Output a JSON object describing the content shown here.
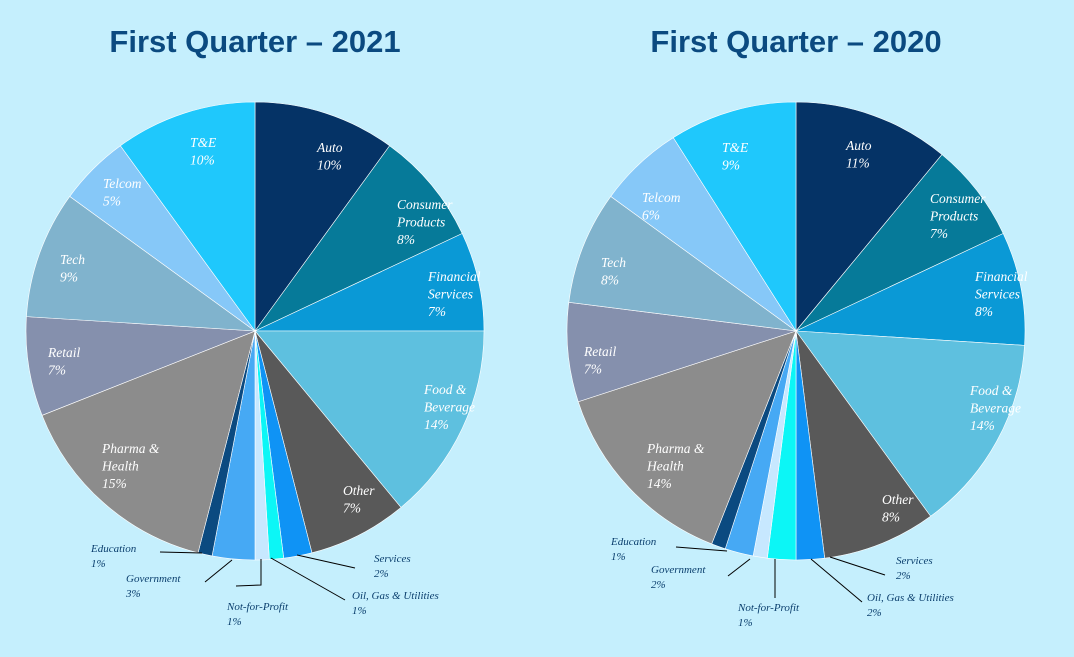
{
  "chart_data": [
    {
      "type": "pie",
      "title": "First Quarter – 2021",
      "slices": [
        {
          "label": "Auto",
          "percent_label": "10%",
          "value": 10,
          "color": "#053366"
        },
        {
          "label": "Consumer Products",
          "percent_label": "8%",
          "value": 8,
          "color": "#067a99"
        },
        {
          "label": "Financial Services",
          "percent_label": "7%",
          "value": 7,
          "color": "#0a99d6"
        },
        {
          "label": "Food & Beverage",
          "percent_label": "14%",
          "value": 14,
          "color": "#5ec0df"
        },
        {
          "label": "Other",
          "percent_label": "7%",
          "value": 7,
          "color": "#595959"
        },
        {
          "label": "Services",
          "percent_label": "2%",
          "value": 2,
          "color": "#0f93f5"
        },
        {
          "label": "Oil, Gas & Utilities",
          "percent_label": "1%",
          "value": 1,
          "color": "#0cf6f6"
        },
        {
          "label": "Not-for-Profit",
          "percent_label": "1%",
          "value": 1,
          "color": "#c7e8ff"
        },
        {
          "label": "Government",
          "percent_label": "3%",
          "value": 3,
          "color": "#46a9f4"
        },
        {
          "label": "Education",
          "percent_label": "1%",
          "value": 1,
          "color": "#0b4a80"
        },
        {
          "label": "Pharma & Health",
          "percent_label": "15%",
          "value": 15,
          "color": "#8c8c8c"
        },
        {
          "label": "Retail",
          "percent_label": "7%",
          "value": 7,
          "color": "#8590ad"
        },
        {
          "label": "Tech",
          "percent_label": "9%",
          "value": 9,
          "color": "#80b3cd"
        },
        {
          "label": "Telcom",
          "percent_label": "5%",
          "value": 5,
          "color": "#86c8f8"
        },
        {
          "label": "T&E",
          "percent_label": "10%",
          "value": 10,
          "color": "#1fc8fc"
        }
      ]
    },
    {
      "type": "pie",
      "title": "First Quarter – 2020",
      "slices": [
        {
          "label": "Auto",
          "percent_label": "11%",
          "value": 11,
          "color": "#053366"
        },
        {
          "label": "Consumer Products",
          "percent_label": "7%",
          "value": 7,
          "color": "#067a99"
        },
        {
          "label": "Financial Services",
          "percent_label": "8%",
          "value": 8,
          "color": "#0a99d6"
        },
        {
          "label": "Food & Beverage",
          "percent_label": "14%",
          "value": 14,
          "color": "#5ec0df"
        },
        {
          "label": "Other",
          "percent_label": "8%",
          "value": 8,
          "color": "#595959"
        },
        {
          "label": "Services",
          "percent_label": "2%",
          "value": 2,
          "color": "#0f93f5"
        },
        {
          "label": "Oil, Gas & Utilities",
          "percent_label": "2%",
          "value": 2,
          "color": "#0cf6f6"
        },
        {
          "label": "Not-for-Profit",
          "percent_label": "1%",
          "value": 1,
          "color": "#c7e8ff"
        },
        {
          "label": "Government",
          "percent_label": "2%",
          "value": 2,
          "color": "#46a9f4"
        },
        {
          "label": "Education",
          "percent_label": "1%",
          "value": 1,
          "color": "#0b4a80"
        },
        {
          "label": "Pharma & Health",
          "percent_label": "14%",
          "value": 14,
          "color": "#8c8c8c"
        },
        {
          "label": "Retail",
          "percent_label": "7%",
          "value": 7,
          "color": "#8590ad"
        },
        {
          "label": "Tech",
          "percent_label": "8%",
          "value": 8,
          "color": "#80b3cd"
        },
        {
          "label": "Telcom",
          "percent_label": "6%",
          "value": 6,
          "color": "#86c8f8"
        },
        {
          "label": "T&E",
          "percent_label": "9%",
          "value": 9,
          "color": "#1fc8fc"
        }
      ]
    }
  ]
}
